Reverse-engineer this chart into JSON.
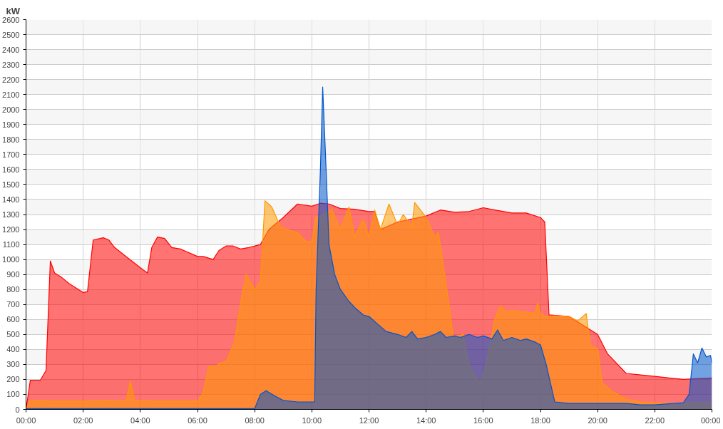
{
  "chart_data": {
    "type": "area",
    "ylabel": "kW",
    "xlim": [
      0,
      24
    ],
    "ylim": [
      0,
      2600
    ],
    "xticks": [
      {
        "value": 0,
        "label": "00:00"
      },
      {
        "value": 2,
        "label": "02:00"
      },
      {
        "value": 4,
        "label": "04:00"
      },
      {
        "value": 6,
        "label": "06:00"
      },
      {
        "value": 8,
        "label": "08:00"
      },
      {
        "value": 10,
        "label": "10:00"
      },
      {
        "value": 12,
        "label": "12:00"
      },
      {
        "value": 14,
        "label": "14:00"
      },
      {
        "value": 16,
        "label": "16:00"
      },
      {
        "value": 18,
        "label": "18:00"
      },
      {
        "value": 20,
        "label": "20:00"
      },
      {
        "value": 22,
        "label": "22:00"
      },
      {
        "value": 24,
        "label": "00:00"
      }
    ],
    "yticks": [
      0,
      100,
      200,
      300,
      400,
      500,
      600,
      700,
      800,
      900,
      1000,
      1100,
      1200,
      1300,
      1400,
      1500,
      1600,
      1700,
      1800,
      1900,
      2000,
      2100,
      2200,
      2300,
      2400,
      2500,
      2600
    ],
    "grid": true,
    "series": [
      {
        "color": "#ff0000",
        "x": [
          0,
          0.15,
          0.5,
          0.7,
          0.85,
          1.0,
          1.25,
          1.5,
          2.0,
          2.15,
          2.35,
          2.7,
          2.9,
          3.1,
          3.5,
          3.9,
          4.1,
          4.25,
          4.4,
          4.6,
          4.85,
          5.1,
          5.4,
          6.0,
          6.2,
          6.55,
          6.75,
          7.0,
          7.25,
          7.5,
          7.8,
          8.2,
          8.5,
          9.0,
          9.5,
          10.0,
          10.3,
          10.6,
          11.0,
          11.5,
          12.0,
          12.2,
          12.4,
          13.0,
          14.0,
          14.5,
          15.0,
          15.5,
          16.0,
          16.4,
          17.0,
          17.5,
          18.0,
          18.15,
          18.3,
          19.0,
          19.5,
          20.0,
          20.35,
          21.0,
          21.5,
          22.0,
          22.5,
          23.0,
          23.5,
          24.0
        ],
        "values": [
          0,
          195,
          195,
          260,
          990,
          910,
          880,
          840,
          780,
          785,
          1130,
          1145,
          1130,
          1080,
          1020,
          960,
          930,
          910,
          1080,
          1150,
          1140,
          1080,
          1070,
          1020,
          1020,
          1000,
          1060,
          1090,
          1090,
          1070,
          1080,
          1100,
          1200,
          1280,
          1370,
          1355,
          1375,
          1370,
          1340,
          1335,
          1320,
          1320,
          1200,
          1250,
          1290,
          1330,
          1315,
          1320,
          1345,
          1330,
          1310,
          1310,
          1280,
          1250,
          630,
          620,
          560,
          500,
          370,
          240,
          230,
          220,
          210,
          200,
          205,
          210
        ]
      },
      {
        "color": "#ff9900",
        "x": [
          0,
          0.15,
          1.0,
          2.0,
          2.8,
          3.5,
          3.65,
          3.8,
          4.5,
          5.5,
          6.0,
          6.2,
          6.4,
          6.6,
          6.8,
          7.0,
          7.3,
          7.5,
          7.7,
          8.0,
          8.2,
          8.36,
          8.6,
          8.9,
          9.1,
          9.5,
          9.8,
          10.0,
          10.15,
          10.4,
          10.7,
          11.0,
          11.3,
          11.5,
          11.8,
          12.0,
          12.2,
          12.4,
          12.7,
          13.0,
          13.2,
          13.5,
          13.6,
          14.0,
          14.3,
          14.43,
          14.8,
          14.95,
          15.3,
          15.5,
          15.9,
          16.1,
          16.4,
          16.6,
          16.8,
          17.0,
          17.5,
          17.8,
          17.9,
          18.0,
          18.15,
          18.5,
          19.0,
          19.3,
          19.6,
          19.75,
          20.0,
          20.15,
          20.5,
          21.0,
          21.5,
          22.0,
          22.5,
          23.0,
          23.5,
          24.0
        ],
        "values": [
          0,
          60,
          55,
          55,
          60,
          55,
          190,
          60,
          55,
          55,
          55,
          110,
          290,
          280,
          310,
          320,
          450,
          700,
          900,
          800,
          850,
          1392,
          1350,
          1220,
          1200,
          1180,
          1120,
          1120,
          1280,
          1300,
          1335,
          1200,
          1350,
          1150,
          1270,
          1150,
          1330,
          1200,
          1370,
          1230,
          1300,
          1220,
          1380,
          1280,
          1150,
          1180,
          700,
          480,
          500,
          300,
          170,
          300,
          600,
          690,
          650,
          660,
          650,
          640,
          710,
          640,
          620,
          625,
          620,
          590,
          640,
          420,
          410,
          180,
          120,
          70,
          50,
          45,
          40,
          45,
          45,
          45
        ]
      },
      {
        "color": "#0055cc",
        "x": [
          0,
          8.0,
          8.2,
          8.4,
          8.7,
          9.0,
          9.5,
          10.0,
          10.1,
          10.15,
          10.3,
          10.38,
          10.5,
          10.6,
          10.8,
          11.0,
          11.3,
          11.5,
          11.8,
          12.0,
          12.3,
          12.6,
          13.0,
          13.3,
          13.5,
          13.7,
          14.0,
          14.3,
          14.5,
          14.7,
          15.0,
          15.2,
          15.5,
          15.8,
          16.0,
          16.3,
          16.5,
          16.7,
          17.0,
          17.3,
          17.5,
          17.8,
          18.0,
          18.2,
          18.5,
          19.0,
          20.0,
          21.0,
          21.5,
          22.0,
          23.0,
          23.2,
          23.35,
          23.5,
          23.65,
          23.8,
          23.95,
          24.0
        ],
        "values": [
          5,
          5,
          100,
          125,
          90,
          60,
          50,
          50,
          50,
          800,
          1600,
          2150,
          1600,
          1100,
          900,
          800,
          720,
          680,
          630,
          620,
          570,
          520,
          500,
          480,
          520,
          470,
          480,
          500,
          520,
          480,
          490,
          480,
          500,
          480,
          490,
          470,
          530,
          460,
          480,
          460,
          470,
          450,
          430,
          300,
          50,
          40,
          40,
          40,
          30,
          30,
          45,
          100,
          370,
          310,
          410,
          350,
          360,
          310
        ]
      }
    ]
  }
}
